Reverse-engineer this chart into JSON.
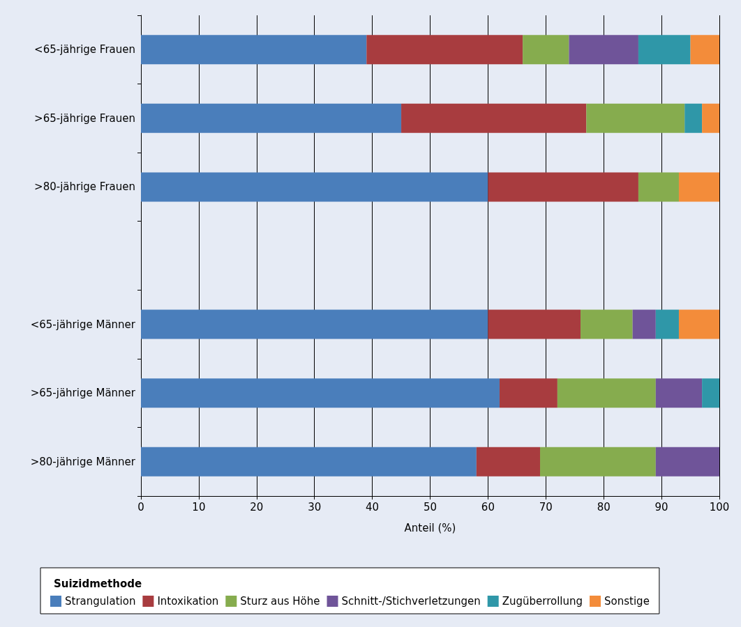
{
  "chart_data": {
    "type": "bar",
    "orientation": "horizontal",
    "stacked": true,
    "xlabel": "Anteil (%)",
    "legend_title": "Suizidmethode",
    "categories": [
      "<65-jährige Frauen",
      ">65-jährige Frauen",
      ">80-jährige Frauen",
      null,
      "<65-jährige Männer",
      ">65-jährige Männer",
      ">80-jährige Männer"
    ],
    "series": [
      {
        "name": "Strangulation",
        "color": "#4a7ebb",
        "values": [
          39,
          45,
          60,
          null,
          60,
          62,
          58
        ]
      },
      {
        "name": "Intoxikation",
        "color": "#a83c3f",
        "values": [
          27,
          32,
          26,
          null,
          16,
          10,
          11
        ]
      },
      {
        "name": "Sturz aus Höhe",
        "color": "#86ac4e",
        "values": [
          8,
          17,
          7,
          null,
          9,
          17,
          20
        ]
      },
      {
        "name": "Schnitt-/Stichverletzungen",
        "color": "#6f5499",
        "values": [
          12,
          0,
          0,
          null,
          4,
          8,
          11
        ]
      },
      {
        "name": "Zugüberrollung",
        "color": "#2f97a8",
        "values": [
          9,
          3,
          0,
          null,
          4,
          3,
          0
        ]
      },
      {
        "name": "Sonstige",
        "color": "#f38c3a",
        "values": [
          5,
          3,
          7,
          null,
          7,
          0,
          0
        ]
      }
    ],
    "xlim": [
      0,
      100
    ],
    "xticks": [
      0,
      10,
      20,
      30,
      40,
      50,
      60,
      70,
      80,
      90,
      100
    ],
    "grid": "x",
    "legend": "bottom"
  }
}
